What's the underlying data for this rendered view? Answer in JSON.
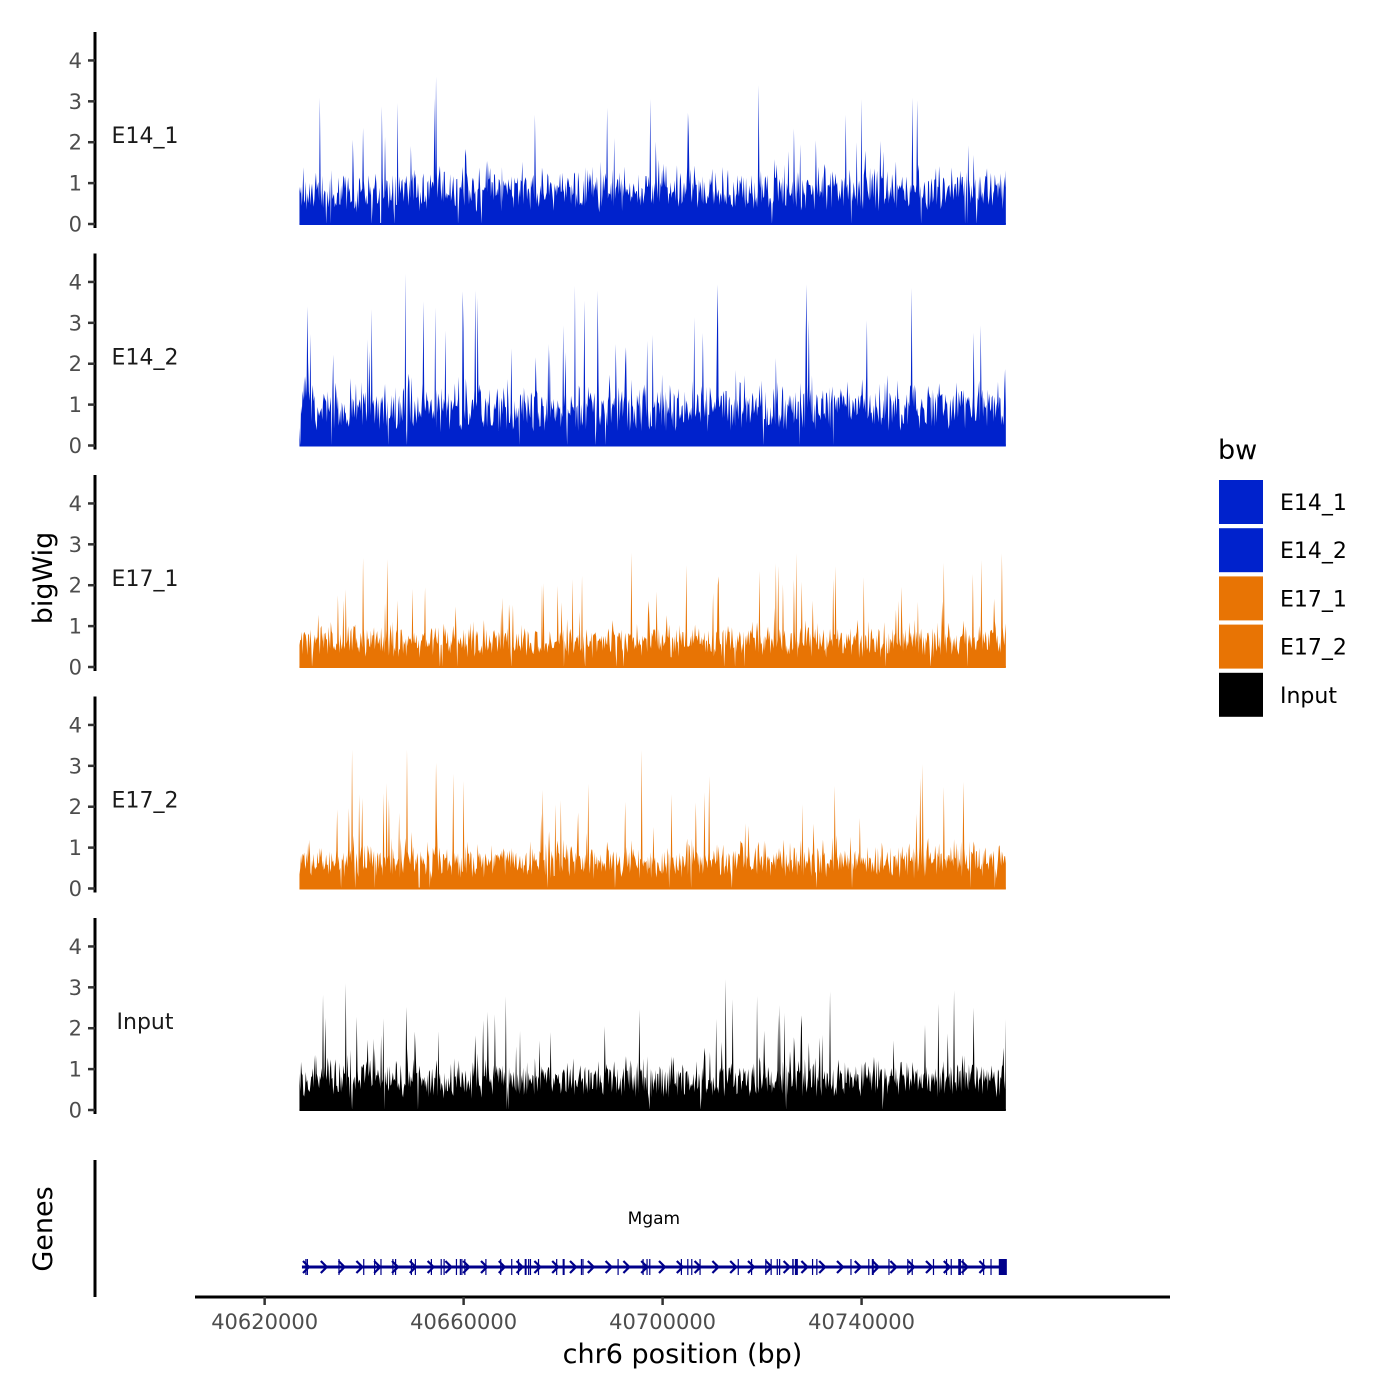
{
  "chart_data": {
    "type": "area",
    "x": {
      "label": "chr6 position (bp)",
      "range": [
        40606000,
        40802000
      ],
      "ticks": [
        40620000,
        40660000,
        40700000,
        40740000
      ],
      "tick_labels": [
        "40620000",
        "40660000",
        "40700000",
        "40740000"
      ],
      "data_range": [
        40627000,
        40769000
      ]
    },
    "y": {
      "label": "bigWig",
      "range": [
        0,
        4.5
      ],
      "ticks": [
        0,
        1,
        2,
        3,
        4
      ],
      "tick_labels": [
        "0",
        "1",
        "2",
        "3",
        "4"
      ]
    },
    "tracks": [
      {
        "name": "E14_1",
        "label": "E14_1",
        "color": "#0022CC",
        "base": 0.8,
        "noise": 0.7,
        "peak_max": 3.6,
        "seed": 11
      },
      {
        "name": "E14_2",
        "label": "E14_2",
        "color": "#0022CC",
        "base": 0.9,
        "noise": 0.75,
        "peak_max": 4.2,
        "seed": 23
      },
      {
        "name": "E17_1",
        "label": "E17_1",
        "color": "#E87404",
        "base": 0.6,
        "noise": 0.55,
        "peak_max": 2.8,
        "seed": 37
      },
      {
        "name": "E17_2",
        "label": "E17_2",
        "color": "#E87404",
        "base": 0.65,
        "noise": 0.6,
        "peak_max": 3.4,
        "seed": 51
      },
      {
        "name": "Input",
        "label": "Input",
        "color": "#000000",
        "base": 0.75,
        "noise": 0.55,
        "peak_max": 3.2,
        "seed": 71
      }
    ],
    "genes": {
      "label": "Genes",
      "items": [
        {
          "name": "Mgam",
          "start": 40627500,
          "end": 40769000,
          "strand": "+",
          "color": "#00008B"
        }
      ]
    },
    "legend": {
      "title": "bw",
      "position": "right",
      "entries": [
        {
          "label": "E14_1",
          "color": "#0022CC"
        },
        {
          "label": "E14_2",
          "color": "#0022CC"
        },
        {
          "label": "E17_1",
          "color": "#E87404"
        },
        {
          "label": "E17_2",
          "color": "#E87404"
        },
        {
          "label": "Input",
          "color": "#000000"
        }
      ]
    }
  }
}
